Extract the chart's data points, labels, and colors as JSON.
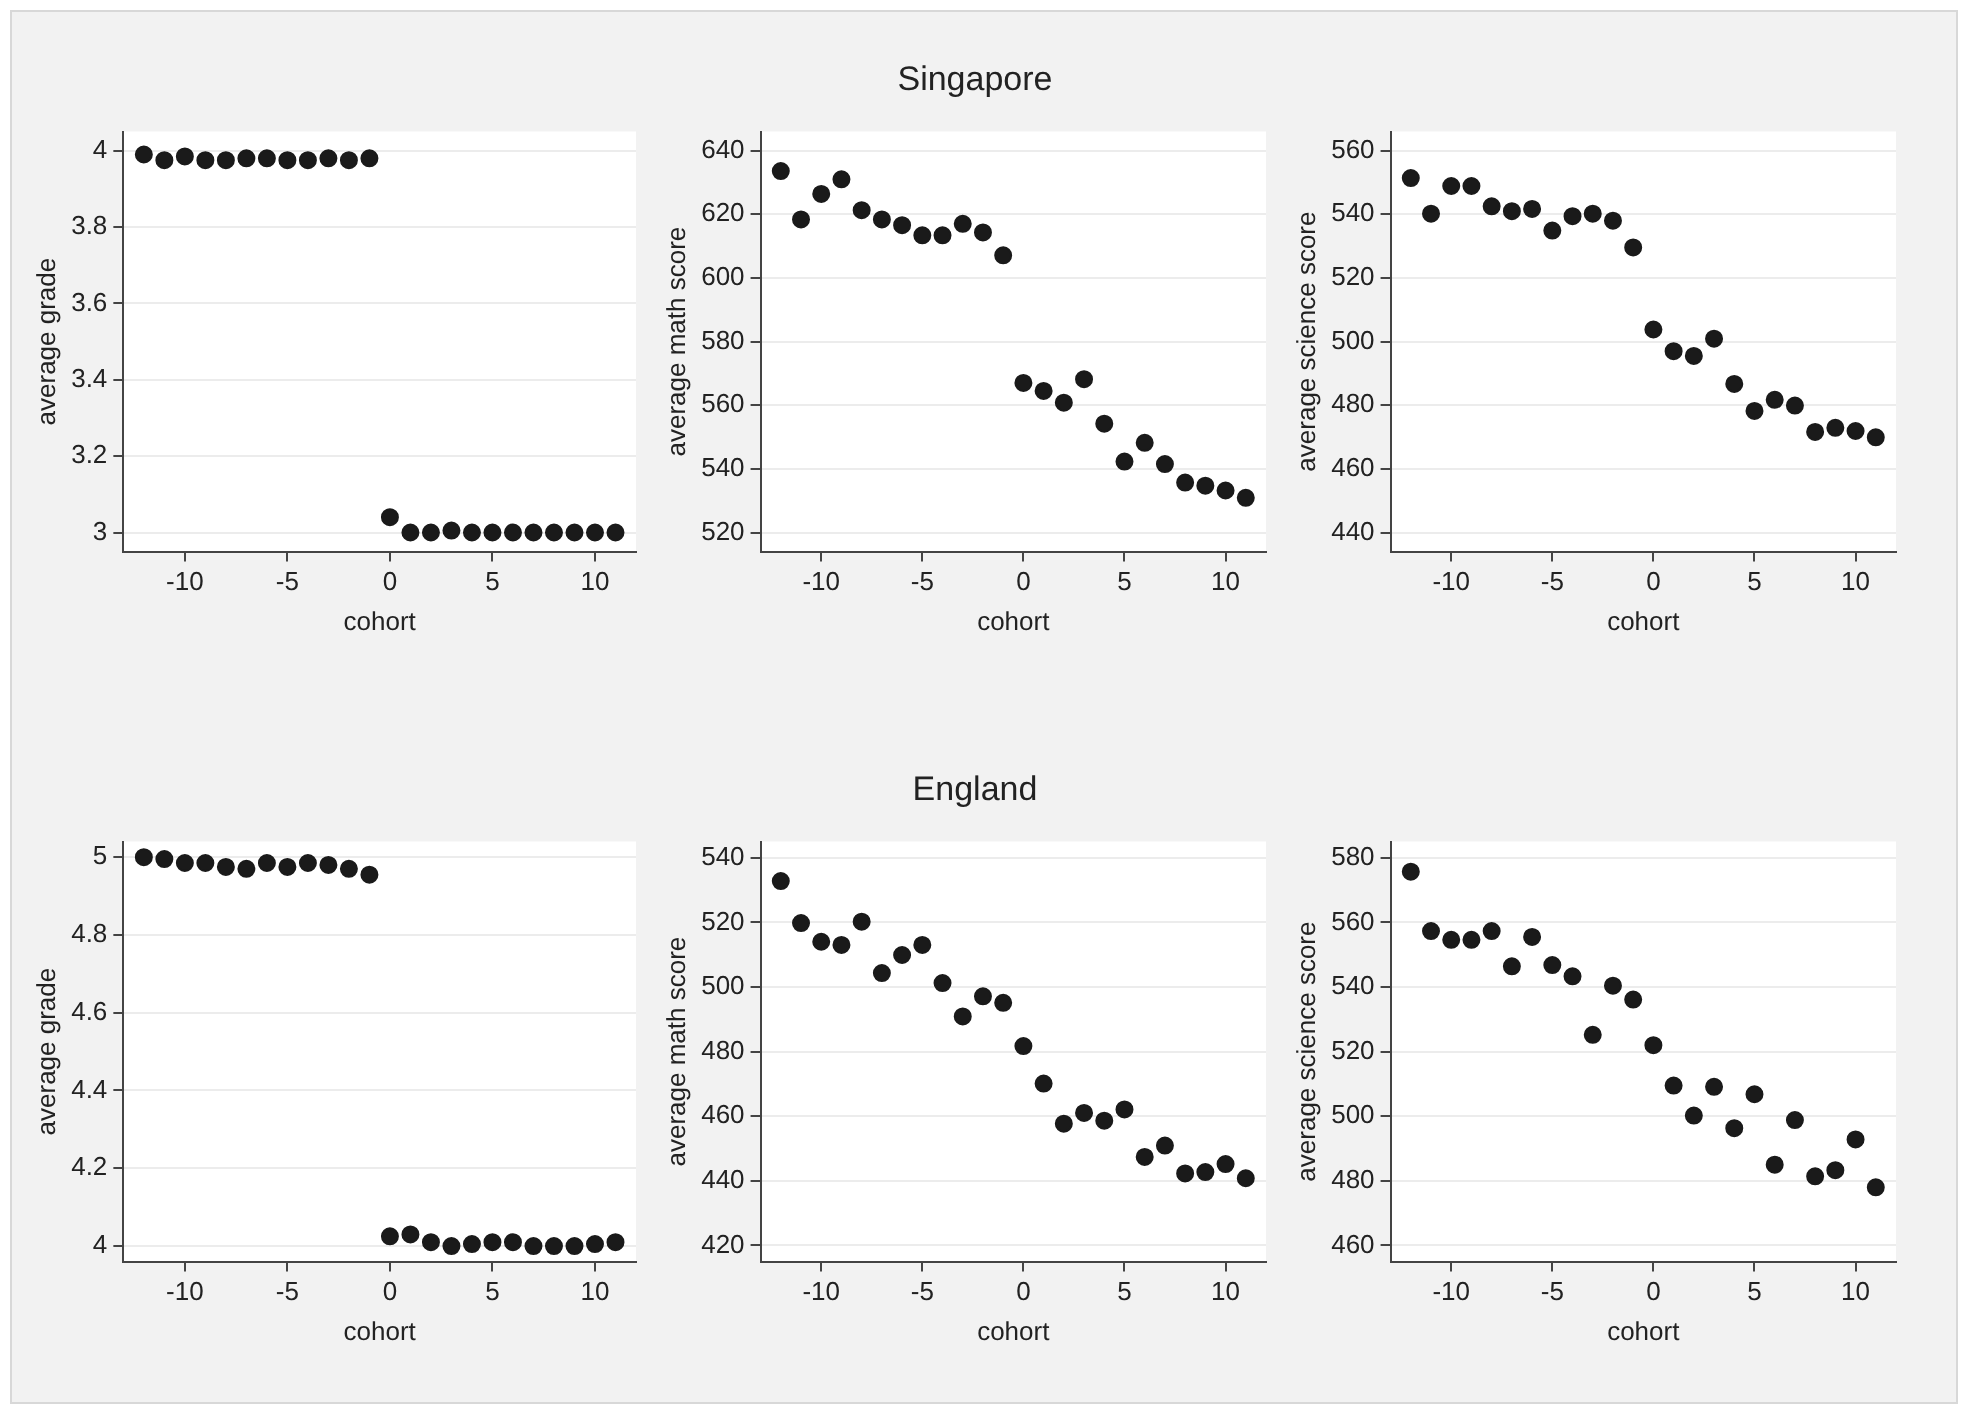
{
  "chart_data": [
    {
      "type": "scatter",
      "xlabel": "cohort",
      "ylabel": "average grade",
      "x": [
        -12,
        -11,
        -10,
        -9,
        -8,
        -7,
        -6,
        -5,
        -4,
        -3,
        -2,
        -1,
        0,
        1,
        2,
        3,
        4,
        5,
        6,
        7,
        8,
        9,
        10,
        11
      ],
      "values": [
        3.99,
        3.975,
        3.985,
        3.975,
        3.975,
        3.98,
        3.98,
        3.975,
        3.975,
        3.98,
        3.975,
        3.98,
        3.04,
        3.0,
        3.0,
        3.005,
        3.0,
        3.0,
        3.0,
        3.0,
        3.0,
        3.0,
        3.0,
        3.0
      ],
      "color": "#1a1a1a",
      "xlim": [
        -13,
        12
      ],
      "xticks": [
        -10,
        -5,
        0,
        5,
        10
      ],
      "ylim": [
        2.95,
        4.05
      ],
      "yticks": [
        3,
        3.2,
        3.4,
        3.6,
        3.8,
        4
      ],
      "grid": "y",
      "marker": "circle"
    },
    {
      "type": "scatter",
      "title": "Singapore",
      "xlabel": "cohort",
      "ylabel": "average math score",
      "x": [
        -12,
        -11,
        -10,
        -9,
        -8,
        -7,
        -6,
        -5,
        -4,
        -3,
        -2,
        -1,
        0,
        1,
        2,
        3,
        4,
        5,
        6,
        7,
        8,
        9,
        10,
        11
      ],
      "values": [
        633.6,
        618.4,
        626.4,
        631,
        621.3,
        618.4,
        616.6,
        613.4,
        613.4,
        617,
        614.3,
        607.1,
        567,
        564.5,
        560.8,
        568.2,
        554.2,
        542.3,
        548.2,
        541.5,
        535.7,
        534.7,
        533.2,
        530.9
      ],
      "color": "#1a1a1a",
      "xlim": [
        -13,
        12
      ],
      "xticks": [
        -10,
        -5,
        0,
        5,
        10
      ],
      "ylim": [
        514,
        646
      ],
      "yticks": [
        520,
        540,
        560,
        580,
        600,
        620,
        640
      ],
      "grid": "y",
      "marker": "circle"
    },
    {
      "type": "scatter",
      "xlabel": "cohort",
      "ylabel": "average science score",
      "x": [
        -12,
        -11,
        -10,
        -9,
        -8,
        -7,
        -6,
        -5,
        -4,
        -3,
        -2,
        -1,
        0,
        1,
        2,
        3,
        4,
        5,
        6,
        7,
        8,
        9,
        10,
        11
      ],
      "values": [
        551.4,
        540.2,
        548.9,
        548.9,
        542.5,
        541,
        541.7,
        534.9,
        539.4,
        540.2,
        538,
        529.6,
        503.8,
        497,
        495.5,
        500.9,
        486.7,
        478.2,
        481.7,
        479.9,
        471.6,
        472.9,
        471.9,
        469.9
      ],
      "color": "#1a1a1a",
      "xlim": [
        -13,
        12
      ],
      "xticks": [
        -10,
        -5,
        0,
        5,
        10
      ],
      "ylim": [
        434,
        566
      ],
      "yticks": [
        440,
        460,
        480,
        500,
        520,
        540,
        560
      ],
      "grid": "y",
      "marker": "circle"
    },
    {
      "type": "scatter",
      "xlabel": "cohort",
      "ylabel": "average grade",
      "x": [
        -12,
        -11,
        -10,
        -9,
        -8,
        -7,
        -6,
        -5,
        -4,
        -3,
        -2,
        -1,
        0,
        1,
        2,
        3,
        4,
        5,
        6,
        7,
        8,
        9,
        10,
        11
      ],
      "values": [
        5.0,
        4.995,
        4.985,
        4.985,
        4.975,
        4.97,
        4.985,
        4.975,
        4.985,
        4.98,
        4.97,
        4.955,
        4.025,
        4.03,
        4.01,
        4.0,
        4.005,
        4.01,
        4.01,
        4.0,
        4.0,
        4.0,
        4.005,
        4.01
      ],
      "color": "#1a1a1a",
      "xlim": [
        -13,
        12
      ],
      "xticks": [
        -10,
        -5,
        0,
        5,
        10
      ],
      "ylim": [
        3.96,
        5.04
      ],
      "yticks": [
        4,
        4.2,
        4.4,
        4.6,
        4.8,
        5
      ],
      "grid": "y",
      "marker": "circle"
    },
    {
      "type": "scatter",
      "title": "England",
      "xlabel": "cohort",
      "ylabel": "average math score",
      "x": [
        -12,
        -11,
        -10,
        -9,
        -8,
        -7,
        -6,
        -5,
        -4,
        -3,
        -2,
        -1,
        0,
        1,
        2,
        3,
        4,
        5,
        6,
        7,
        8,
        9,
        10,
        11
      ],
      "values": [
        532.8,
        519.8,
        514,
        513,
        520.2,
        504.3,
        509.9,
        513,
        501.2,
        490.9,
        497.1,
        495.1,
        481.7,
        470.1,
        457.7,
        461,
        458.6,
        462.1,
        447.4,
        450.9,
        442.3,
        442.7,
        445.2,
        440.8
      ],
      "color": "#1a1a1a",
      "xlim": [
        -13,
        12
      ],
      "xticks": [
        -10,
        -5,
        0,
        5,
        10
      ],
      "ylim": [
        415,
        545
      ],
      "yticks": [
        420,
        440,
        460,
        480,
        500,
        520,
        540
      ],
      "grid": "y",
      "marker": "circle"
    },
    {
      "type": "scatter",
      "xlabel": "cohort",
      "ylabel": "average science score",
      "x": [
        -12,
        -11,
        -10,
        -9,
        -8,
        -7,
        -6,
        -5,
        -4,
        -3,
        -2,
        -1,
        0,
        1,
        2,
        3,
        4,
        5,
        6,
        7,
        8,
        9,
        10,
        11
      ],
      "values": [
        575.7,
        557.3,
        554.6,
        554.6,
        557.3,
        546.4,
        555.5,
        546.8,
        543.3,
        525.2,
        540.4,
        536.1,
        522,
        509.5,
        500.2,
        509.1,
        496.3,
        506.8,
        485,
        498.8,
        481.4,
        483.3,
        492.8,
        478
      ],
      "color": "#1a1a1a",
      "xlim": [
        -13,
        12
      ],
      "xticks": [
        -10,
        -5,
        0,
        5,
        10
      ],
      "ylim": [
        455,
        585
      ],
      "yticks": [
        460,
        480,
        500,
        520,
        540,
        560,
        580
      ],
      "grid": "y",
      "marker": "circle"
    }
  ]
}
